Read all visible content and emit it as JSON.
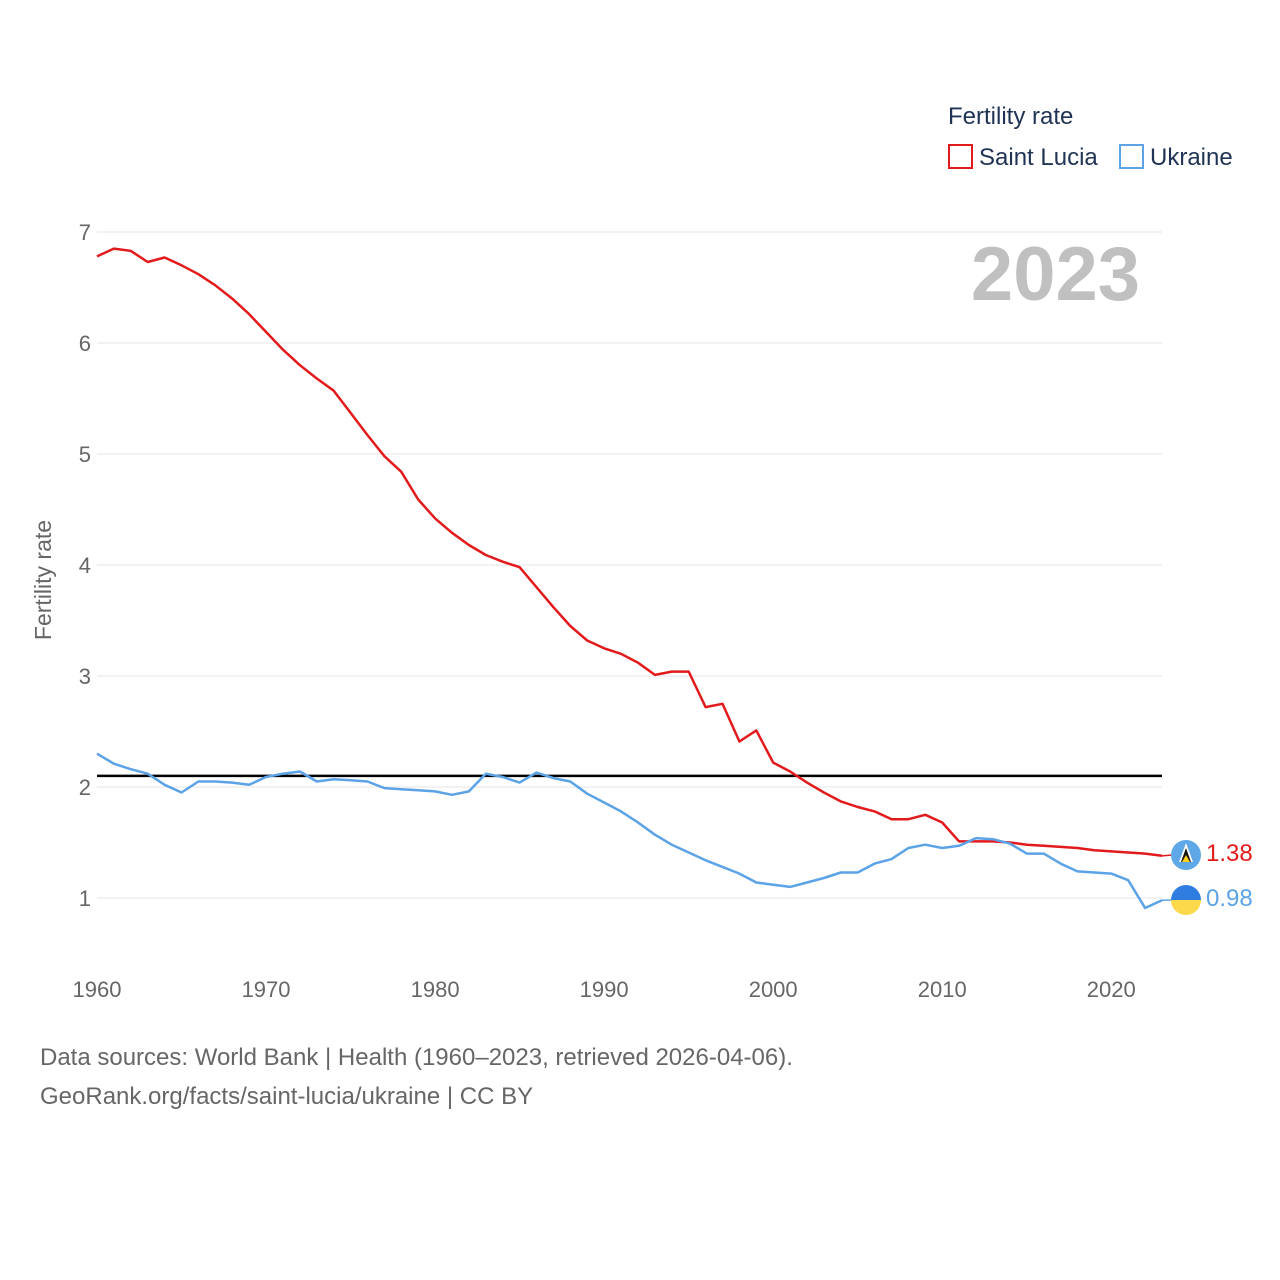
{
  "chart_data": {
    "type": "line",
    "title": "Fertility rate",
    "xlabel": "",
    "ylabel": "Fertility rate",
    "current_year_label": "2023",
    "xlim": [
      1960,
      2023
    ],
    "ylim": [
      0.6,
      7.1
    ],
    "x_ticks": [
      1960,
      1970,
      1980,
      1990,
      2000,
      2010,
      2020
    ],
    "y_ticks": [
      1,
      2,
      3,
      4,
      5,
      6,
      7
    ],
    "reference_line": {
      "value": 2.1,
      "color": "#000000"
    },
    "legend": {
      "title": "Fertility rate",
      "position": "top-right"
    },
    "x": [
      1960,
      1961,
      1962,
      1963,
      1964,
      1965,
      1966,
      1967,
      1968,
      1969,
      1970,
      1971,
      1972,
      1973,
      1974,
      1975,
      1976,
      1977,
      1978,
      1979,
      1980,
      1981,
      1982,
      1983,
      1984,
      1985,
      1986,
      1987,
      1988,
      1989,
      1990,
      1991,
      1992,
      1993,
      1994,
      1995,
      1996,
      1997,
      1998,
      1999,
      2000,
      2001,
      2002,
      2003,
      2004,
      2005,
      2006,
      2007,
      2008,
      2009,
      2010,
      2011,
      2012,
      2013,
      2014,
      2015,
      2016,
      2017,
      2018,
      2019,
      2020,
      2021,
      2022,
      2023
    ],
    "series": [
      {
        "name": "Saint Lucia",
        "color": "#e31a1c",
        "end_label": "1.38",
        "icon": "saint-lucia-flag-icon",
        "values": [
          6.78,
          6.85,
          6.83,
          6.73,
          6.77,
          6.7,
          6.62,
          6.52,
          6.4,
          6.26,
          6.1,
          5.94,
          5.8,
          5.68,
          5.57,
          5.37,
          5.17,
          4.98,
          4.84,
          4.59,
          4.42,
          4.29,
          4.18,
          4.09,
          4.03,
          3.98,
          3.8,
          3.62,
          3.45,
          3.32,
          3.25,
          3.2,
          3.12,
          3.01,
          3.04,
          3.04,
          2.72,
          2.75,
          2.41,
          2.51,
          2.22,
          2.14,
          2.04,
          1.95,
          1.87,
          1.82,
          1.78,
          1.71,
          1.71,
          1.75,
          1.68,
          1.51,
          1.51,
          1.51,
          1.5,
          1.48,
          1.47,
          1.46,
          1.45,
          1.43,
          1.42,
          1.41,
          1.4,
          1.38
        ]
      },
      {
        "name": "Ukraine",
        "color": "#5ba3e6",
        "end_label": "0.98",
        "icon": "ukraine-flag-icon",
        "values": [
          2.3,
          2.21,
          2.16,
          2.12,
          2.02,
          1.95,
          2.05,
          2.05,
          2.04,
          2.02,
          2.09,
          2.12,
          2.14,
          2.05,
          2.07,
          2.06,
          2.05,
          1.99,
          1.98,
          1.97,
          1.96,
          1.93,
          1.96,
          2.12,
          2.09,
          2.04,
          2.13,
          2.08,
          2.05,
          1.94,
          1.86,
          1.78,
          1.68,
          1.57,
          1.48,
          1.41,
          1.34,
          1.28,
          1.22,
          1.14,
          1.12,
          1.1,
          1.14,
          1.18,
          1.23,
          1.23,
          1.31,
          1.35,
          1.45,
          1.48,
          1.45,
          1.47,
          1.54,
          1.53,
          1.49,
          1.4,
          1.4,
          1.31,
          1.24,
          1.23,
          1.22,
          1.16,
          0.91,
          0.98
        ]
      }
    ]
  },
  "footer": {
    "sources": "Data sources: World Bank | Health (1960–2023, retrieved 2026-04-06).",
    "credit": "GeoRank.org/facts/saint-lucia/ukraine | CC BY"
  }
}
